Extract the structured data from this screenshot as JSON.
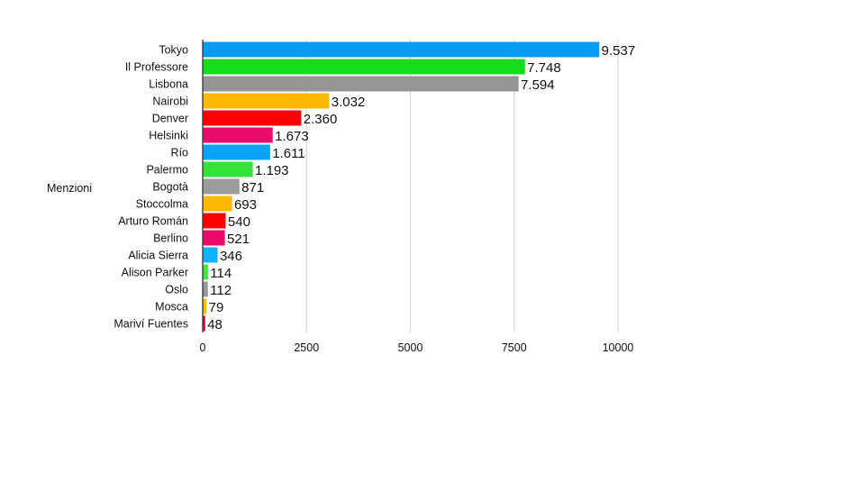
{
  "chart_data": {
    "type": "bar",
    "orientation": "horizontal",
    "title": "",
    "xlabel": "",
    "ylabel": "Menzioni",
    "categories": [
      "Tokyo",
      "Il Professore",
      "Lisbona",
      "Nairobi",
      "Denver",
      "Helsinki",
      "Río",
      "Palermo",
      "Bogotà",
      "Stoccolma",
      "Arturo Román",
      "Berlino",
      "Alicia Sierra",
      "Alison Parker",
      "Oslo",
      "Mosca",
      "Mariví Fuentes"
    ],
    "values": [
      9537,
      7748,
      7594,
      3032,
      2360,
      1673,
      1611,
      1193,
      871,
      693,
      540,
      521,
      346,
      114,
      112,
      79,
      48
    ],
    "value_labels": [
      "9.537",
      "7.748",
      "7.594",
      "3.032",
      "2.360",
      "1.673",
      "1.611",
      "1.193",
      "871",
      "693",
      "540",
      "521",
      "346",
      "114",
      "112",
      "79",
      "48"
    ],
    "colors": [
      "#0a9cf5",
      "#16dc1e",
      "#959595",
      "#fbb805",
      "#ff0000",
      "#e90c6b",
      "#0aa3f6",
      "#32e339",
      "#9b9b9b",
      "#fbb805",
      "#ff0000",
      "#ea0b6c",
      "#0cb4ff",
      "#3ee841",
      "#999999",
      "#fbbc0a",
      "#e0004f"
    ],
    "xticks": [
      0,
      2500,
      5000,
      7500,
      10000
    ],
    "xtick_labels": [
      "0",
      "2500",
      "5000",
      "7500",
      "10000"
    ],
    "xlim": [
      0,
      10000
    ],
    "grid": true,
    "legend": "none"
  }
}
